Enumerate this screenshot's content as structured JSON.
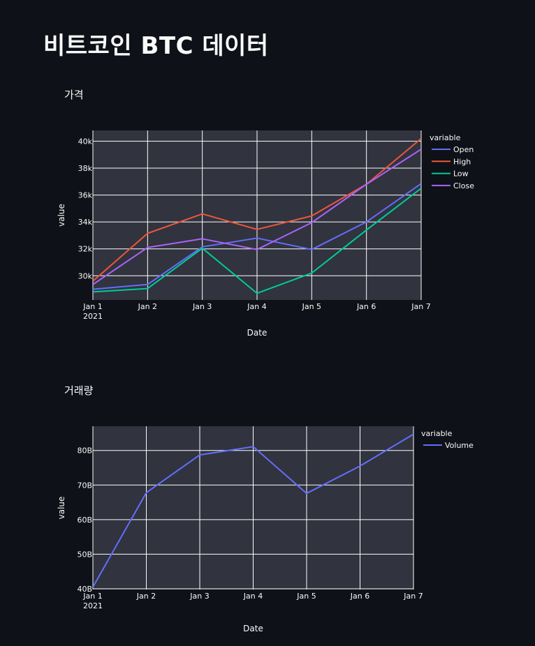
{
  "page": {
    "title": "비트코인 BTC 데이터"
  },
  "chart_data": [
    {
      "type": "line",
      "title": "가격",
      "xlabel": "Date",
      "ylabel": "value",
      "x": [
        "Jan 1",
        "Jan 2",
        "Jan 3",
        "Jan 4",
        "Jan 5",
        "Jan 6",
        "Jan 7"
      ],
      "x_first_sublabel": "2021",
      "y_ticks": [
        30000,
        32000,
        34000,
        36000,
        38000,
        40000
      ],
      "y_tick_labels": [
        "30k",
        "32k",
        "34k",
        "36k",
        "38k",
        "40k"
      ],
      "ylim": [
        28200,
        40800
      ],
      "grid": true,
      "legend_title": "variable",
      "legend_position": "top-right",
      "series": [
        {
          "name": "Open",
          "color": "#636efa",
          "values": [
            29000,
            29350,
            32150,
            32800,
            31950,
            34000,
            36850
          ]
        },
        {
          "name": "High",
          "color": "#ef553b",
          "values": [
            29600,
            33150,
            34600,
            33450,
            34450,
            36800,
            40200
          ]
        },
        {
          "name": "Low",
          "color": "#00cc96",
          "values": [
            28800,
            29050,
            32050,
            28700,
            30200,
            33400,
            36500
          ]
        },
        {
          "name": "Close",
          "color": "#ab63fa",
          "values": [
            29350,
            32100,
            32750,
            31950,
            33950,
            36800,
            39400
          ]
        }
      ]
    },
    {
      "type": "line",
      "title": "거래량",
      "xlabel": "Date",
      "ylabel": "value",
      "x": [
        "Jan 1",
        "Jan 2",
        "Jan 3",
        "Jan 4",
        "Jan 5",
        "Jan 6",
        "Jan 7"
      ],
      "x_first_sublabel": "2021",
      "y_ticks": [
        40,
        50,
        60,
        70,
        80
      ],
      "y_tick_labels": [
        "40B",
        "50B",
        "60B",
        "70B",
        "80B"
      ],
      "ylim": [
        39.8,
        87.0
      ],
      "grid": true,
      "legend_title": "variable",
      "legend_position": "top-right",
      "series": [
        {
          "name": "Volume",
          "color": "#636efa",
          "values": [
            40.5,
            67.8,
            78.7,
            81.1,
            67.6,
            75.5,
            84.7
          ]
        }
      ]
    }
  ],
  "colors": {
    "background": "#0e1117",
    "plot_background": "#31333f",
    "grid": "#ffffff",
    "text": "#fafafa"
  }
}
